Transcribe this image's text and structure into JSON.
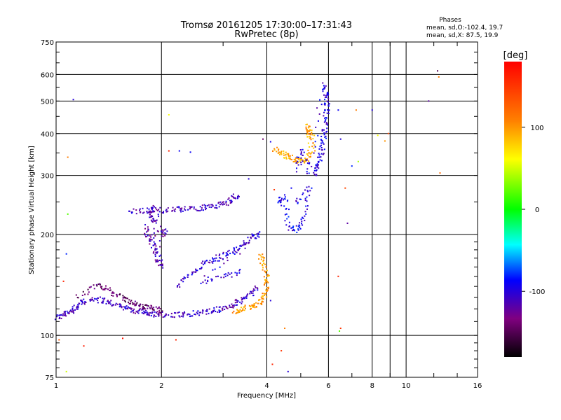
{
  "chart_data": {
    "type": "scatter",
    "title": "Tromsø 20161205 17:30:00–17:31:43",
    "subtitle": "RwPretec (8p)",
    "xlabel": "Frequency [MHz]",
    "ylabel": "Stationary phase Virtual Height [km]",
    "x_scale": "log",
    "y_scale": "log",
    "xlim": [
      1,
      16
    ],
    "ylim": [
      75,
      750
    ],
    "x_ticks": [
      1,
      2,
      4,
      6,
      8,
      10,
      16
    ],
    "x_tick_labels": [
      "1",
      "2",
      "4",
      "6",
      "8",
      "10",
      "16"
    ],
    "y_ticks": [
      75,
      100,
      200,
      300,
      400,
      500,
      600,
      750
    ],
    "y_tick_labels": [
      "75",
      "100",
      "200",
      "300",
      "400",
      "500",
      "600",
      "750"
    ],
    "grid": true,
    "phases_box": {
      "title": "Phases",
      "line_o": "mean, sd,O:-102.4, 19.7",
      "line_x": "mean, sd,X:  87.5, 19.9"
    },
    "colorbar": {
      "label": "[deg]",
      "range": [
        -180,
        180
      ],
      "ticks": [
        100,
        0,
        -100
      ],
      "tick_labels": [
        "100",
        "0",
        "-100"
      ]
    },
    "traces": [
      {
        "points": [
          [
            1.0,
            113
          ],
          [
            1.05,
            115
          ],
          [
            1.1,
            118
          ],
          [
            1.15,
            122
          ],
          [
            1.2,
            126
          ],
          [
            1.3,
            128
          ],
          [
            1.4,
            126
          ],
          [
            1.5,
            123
          ],
          [
            1.6,
            120
          ],
          [
            1.7,
            118
          ],
          [
            1.8,
            117
          ],
          [
            1.9,
            116
          ],
          [
            2.0,
            115
          ],
          [
            2.2,
            115
          ],
          [
            2.4,
            116
          ],
          [
            2.6,
            117
          ],
          [
            2.8,
            118
          ],
          [
            3.0,
            120
          ],
          [
            3.2,
            123
          ],
          [
            3.4,
            127
          ],
          [
            3.6,
            133
          ],
          [
            3.8,
            140
          ]
        ],
        "phase": -110
      },
      {
        "points": [
          [
            1.15,
            130
          ],
          [
            1.3,
            142
          ],
          [
            1.4,
            137
          ],
          [
            1.5,
            132
          ],
          [
            1.6,
            127
          ],
          [
            1.7,
            124
          ],
          [
            1.8,
            122
          ],
          [
            1.9,
            120
          ],
          [
            2.0,
            118
          ]
        ],
        "phase": -140
      },
      {
        "points": [
          [
            1.8,
            210
          ],
          [
            1.85,
            195
          ],
          [
            1.9,
            185
          ],
          [
            1.95,
            170
          ],
          [
            2.0,
            160
          ],
          [
            1.9,
            220
          ],
          [
            1.85,
            230
          ],
          [
            1.9,
            240
          ],
          [
            2.0,
            200
          ],
          [
            2.05,
            205
          ]
        ],
        "phase": -115
      },
      {
        "points": [
          [
            1.6,
            234
          ],
          [
            1.8,
            236
          ],
          [
            2.0,
            236
          ],
          [
            2.2,
            237
          ],
          [
            2.4,
            239
          ],
          [
            2.6,
            240
          ],
          [
            2.8,
            243
          ],
          [
            3.0,
            246
          ],
          [
            3.2,
            255
          ],
          [
            3.3,
            262
          ]
        ],
        "phase": -110
      },
      {
        "points": [
          [
            2.2,
            140
          ],
          [
            2.4,
            150
          ],
          [
            2.6,
            162
          ],
          [
            2.8,
            168
          ],
          [
            3.0,
            172
          ],
          [
            3.2,
            178
          ],
          [
            3.4,
            185
          ],
          [
            3.6,
            195
          ],
          [
            3.8,
            200
          ],
          [
            2.6,
            145
          ],
          [
            3.0,
            150
          ],
          [
            3.4,
            155
          ]
        ],
        "phase": -105
      },
      {
        "points": [
          [
            3.2,
            118
          ],
          [
            3.4,
            120
          ],
          [
            3.6,
            122
          ],
          [
            3.8,
            125
          ],
          [
            3.9,
            130
          ],
          [
            4.0,
            138
          ],
          [
            4.0,
            150
          ],
          [
            3.9,
            165
          ],
          [
            3.8,
            175
          ]
        ],
        "phase": 100
      },
      {
        "points": [
          [
            4.2,
            360
          ],
          [
            4.4,
            350
          ],
          [
            4.6,
            340
          ],
          [
            4.8,
            335
          ],
          [
            5.0,
            330
          ],
          [
            5.2,
            335
          ],
          [
            5.4,
            360
          ],
          [
            5.3,
            400
          ],
          [
            5.2,
            420
          ],
          [
            5.4,
            390
          ]
        ],
        "phase": 95
      },
      {
        "points": [
          [
            5.5,
            300
          ],
          [
            5.6,
            320
          ],
          [
            5.7,
            345
          ],
          [
            5.8,
            375
          ],
          [
            5.85,
            410
          ],
          [
            5.9,
            450
          ],
          [
            5.95,
            490
          ],
          [
            5.9,
            520
          ],
          [
            5.8,
            560
          ],
          [
            5.3,
            305
          ],
          [
            5.0,
            360
          ],
          [
            4.9,
            310
          ]
        ],
        "phase": -100
      },
      {
        "points": [
          [
            4.3,
            250
          ],
          [
            4.5,
            260
          ],
          [
            4.6,
            210
          ],
          [
            4.9,
            205
          ],
          [
            5.1,
            225
          ],
          [
            5.3,
            275
          ],
          [
            4.8,
            245
          ]
        ],
        "phase": -95
      }
    ],
    "scatter_points": [
      {
        "x": 1.12,
        "y": 505,
        "phase": -100
      },
      {
        "x": 1.08,
        "y": 340,
        "phase": 110
      },
      {
        "x": 1.08,
        "y": 230,
        "phase": 20
      },
      {
        "x": 1.07,
        "y": 175,
        "phase": -80
      },
      {
        "x": 1.05,
        "y": 145,
        "phase": 160
      },
      {
        "x": 1.02,
        "y": 97,
        "phase": 130
      },
      {
        "x": 1.07,
        "y": 78,
        "phase": 50
      },
      {
        "x": 1.2,
        "y": 93,
        "phase": 165
      },
      {
        "x": 1.55,
        "y": 98,
        "phase": 170
      },
      {
        "x": 2.1,
        "y": 455,
        "phase": 60
      },
      {
        "x": 2.1,
        "y": 355,
        "phase": 160
      },
      {
        "x": 2.25,
        "y": 355,
        "phase": -90
      },
      {
        "x": 2.42,
        "y": 352,
        "phase": -90
      },
      {
        "x": 3.55,
        "y": 293,
        "phase": -100
      },
      {
        "x": 3.9,
        "y": 385,
        "phase": -140
      },
      {
        "x": 4.1,
        "y": 378,
        "phase": -95
      },
      {
        "x": 4.2,
        "y": 272,
        "phase": 150
      },
      {
        "x": 4.4,
        "y": 244,
        "phase": -100
      },
      {
        "x": 4.7,
        "y": 275,
        "phase": -90
      },
      {
        "x": 4.85,
        "y": 252,
        "phase": -120
      },
      {
        "x": 6.4,
        "y": 470,
        "phase": -90
      },
      {
        "x": 6.5,
        "y": 385,
        "phase": -100
      },
      {
        "x": 6.7,
        "y": 275,
        "phase": 140
      },
      {
        "x": 6.8,
        "y": 216,
        "phase": -120
      },
      {
        "x": 7.2,
        "y": 470,
        "phase": 110
      },
      {
        "x": 7.3,
        "y": 330,
        "phase": 40
      },
      {
        "x": 7.0,
        "y": 320,
        "phase": -80
      },
      {
        "x": 8.0,
        "y": 470,
        "phase": -100
      },
      {
        "x": 8.3,
        "y": 395,
        "phase": 60
      },
      {
        "x": 8.7,
        "y": 380,
        "phase": 100
      },
      {
        "x": 8.9,
        "y": 400,
        "phase": 140
      },
      {
        "x": 11.6,
        "y": 500,
        "phase": -120
      },
      {
        "x": 12.3,
        "y": 615,
        "phase": -150
      },
      {
        "x": 12.4,
        "y": 590,
        "phase": 110
      },
      {
        "x": 12.5,
        "y": 305,
        "phase": 120
      },
      {
        "x": 6.4,
        "y": 150,
        "phase": 160
      },
      {
        "x": 6.45,
        "y": 103,
        "phase": 20
      },
      {
        "x": 6.5,
        "y": 105,
        "phase": 150
      },
      {
        "x": 4.5,
        "y": 105,
        "phase": 110
      },
      {
        "x": 4.4,
        "y": 90,
        "phase": 150
      },
      {
        "x": 4.1,
        "y": 127,
        "phase": -100
      },
      {
        "x": 4.15,
        "y": 82,
        "phase": 160
      },
      {
        "x": 4.6,
        "y": 78,
        "phase": -100
      },
      {
        "x": 2.2,
        "y": 97,
        "phase": 160
      },
      {
        "x": 2.95,
        "y": 118,
        "phase": -80
      }
    ]
  }
}
